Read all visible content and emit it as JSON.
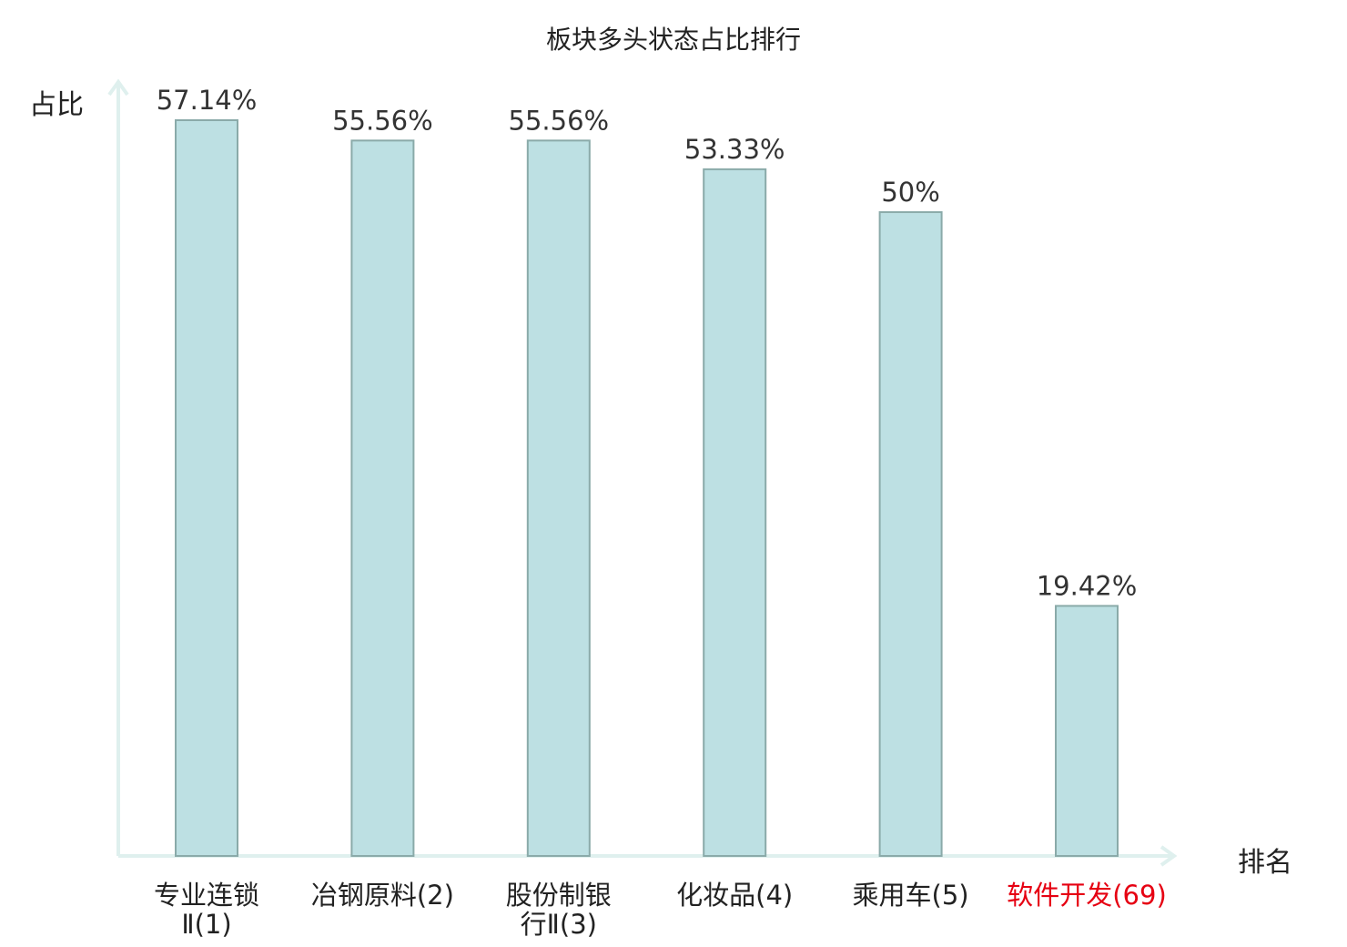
{
  "chart_data": {
    "type": "bar",
    "title": "板块多头状态占比排行",
    "ylabel": "占比",
    "xlabel": "排名",
    "ylim": [
      0,
      60
    ],
    "grid": false,
    "categories": [
      {
        "lines": [
          "专业连锁",
          "Ⅱ(1)"
        ],
        "highlight": false
      },
      {
        "lines": [
          "冶钢原料(2)"
        ],
        "highlight": false
      },
      {
        "lines": [
          "股份制银",
          "行Ⅱ(3)"
        ],
        "highlight": false
      },
      {
        "lines": [
          "化妆品(4)"
        ],
        "highlight": false
      },
      {
        "lines": [
          "乘用车(5)"
        ],
        "highlight": false
      },
      {
        "lines": [
          "软件开发(69)"
        ],
        "highlight": true
      }
    ],
    "values": [
      57.14,
      55.56,
      55.56,
      53.33,
      50,
      19.42
    ],
    "value_labels": [
      "57.14%",
      "55.56%",
      "55.56%",
      "53.33%",
      "50%",
      "19.42%"
    ]
  },
  "colors": {
    "bar_fill": "#bde0e3",
    "bar_stroke": "#8aaaa9",
    "axis": "#dff0ee",
    "text": "#333333",
    "highlight": "#e60012"
  }
}
